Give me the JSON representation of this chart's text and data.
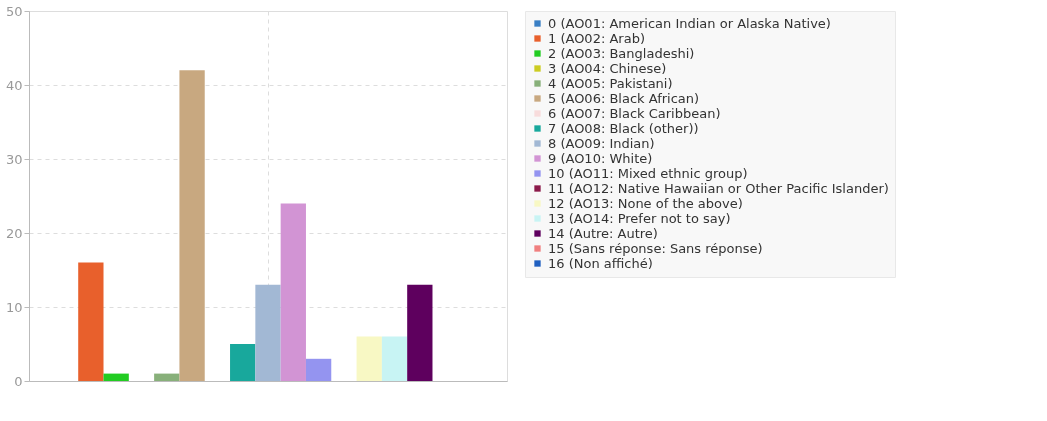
{
  "chart_data": {
    "type": "bar",
    "categories": [
      null
    ],
    "ylim": [
      0,
      50
    ],
    "yticks": [
      0,
      10,
      20,
      30,
      40,
      50
    ],
    "grid": true,
    "legend": "right",
    "series": [
      {
        "name": "0 (AO01: American Indian or Alaska Native)",
        "color": "#3a7fc4",
        "values": [
          0
        ]
      },
      {
        "name": "1 (AO02: Arab)",
        "color": "#e8602c",
        "values": [
          16
        ]
      },
      {
        "name": "2 (AO03: Bangladeshi)",
        "color": "#22cc22",
        "values": [
          1
        ]
      },
      {
        "name": "3 (AO04: Chinese)",
        "color": "#cccc22",
        "values": [
          0
        ]
      },
      {
        "name": "4 (AO05: Pakistani)",
        "color": "#88b07a",
        "values": [
          1
        ]
      },
      {
        "name": "5 (AO06: Black African)",
        "color": "#c8a880",
        "values": [
          42
        ]
      },
      {
        "name": "6 (AO07: Black Caribbean)",
        "color": "#f8dcdc",
        "values": [
          0
        ]
      },
      {
        "name": "7 (AO08: Black (other))",
        "color": "#18a89c",
        "values": [
          5
        ]
      },
      {
        "name": "8 (AO09: Indian)",
        "color": "#a2b8d4",
        "values": [
          13
        ]
      },
      {
        "name": "9 (AO10: White)",
        "color": "#d294d4",
        "values": [
          24
        ]
      },
      {
        "name": "10 (AO11: Mixed ethnic group)",
        "color": "#9494f0",
        "values": [
          3
        ]
      },
      {
        "name": "11 (AO12: Native Hawaiian or Other Pacific Islander)",
        "color": "#8b1a4a",
        "values": [
          0
        ]
      },
      {
        "name": "12 (AO13: None of the above)",
        "color": "#f8f8c4",
        "values": [
          6
        ]
      },
      {
        "name": "13 (AO14: Prefer not to say)",
        "color": "#c8f4f4",
        "values": [
          6
        ]
      },
      {
        "name": "14 (Autre: Autre)",
        "color": "#5e005e",
        "values": [
          13
        ]
      },
      {
        "name": "15 (Sans réponse: Sans réponse)",
        "color": "#f08080",
        "values": [
          0
        ]
      },
      {
        "name": "16 (Non affiché)",
        "color": "#2060c0",
        "values": [
          0
        ]
      }
    ]
  }
}
